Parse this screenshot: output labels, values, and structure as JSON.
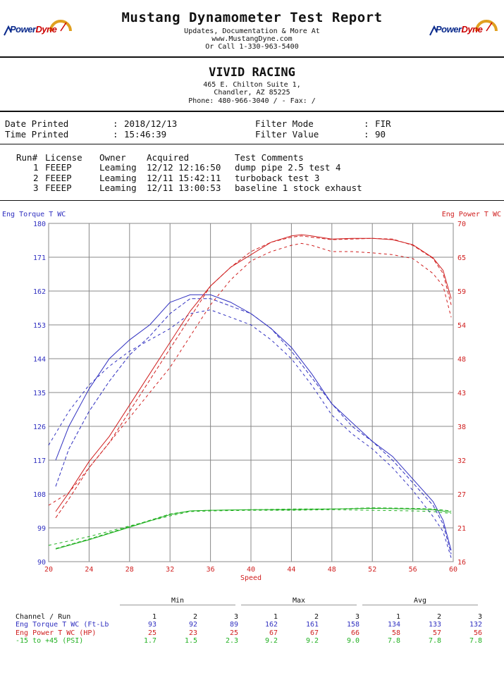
{
  "header": {
    "title": "Mustang Dynamometer Test Report",
    "line1": "Updates, Documentation & More At",
    "line2": "www.MustangDyne.com",
    "line3": "Or Call 1-330-963-5400",
    "logo_text_1": "Power",
    "logo_text_2": "Dyne"
  },
  "company": {
    "name": "VIVID RACING",
    "address1": "465 E. Chilton Suite 1,",
    "address2": "Chandler, AZ  85225",
    "phone": "Phone: 480-966-3040 /  - Fax:  /"
  },
  "meta": {
    "date_label": "Date Printed",
    "date_value": "2018/12/13",
    "time_label": "Time Printed",
    "time_value": "15:46:39",
    "filter_mode_label": "Filter Mode",
    "filter_mode_value": "FIR",
    "filter_value_label": "Filter Value",
    "filter_value_value": "90"
  },
  "runs": {
    "headers": [
      "Run#",
      "License",
      "Owner",
      "Acquired",
      "Test Comments"
    ],
    "rows": [
      {
        "run": "1",
        "license": "FEEEP",
        "owner": "Leaming",
        "acquired": "12/12 12:16:50",
        "comment": "dump pipe 2.5 test 4"
      },
      {
        "run": "2",
        "license": "FEEEP",
        "owner": "Leaming",
        "acquired": "12/11 15:42:11",
        "comment": "turboback test 3"
      },
      {
        "run": "3",
        "license": "FEEEP",
        "owner": "Leaming",
        "acquired": "12/11 13:00:53",
        "comment": "baseline 1 stock exhaust"
      }
    ]
  },
  "chart_data": {
    "type": "line",
    "left_axis_label": "Eng Torque T WC",
    "right_axis_label": "Eng Power T WC",
    "xlabel": "Speed",
    "xlim": [
      20,
      60
    ],
    "x_ticks": [
      "20",
      "24",
      "28",
      "32",
      "36",
      "40",
      "44",
      "48",
      "52",
      "56",
      "60"
    ],
    "left_ylim": [
      90,
      180
    ],
    "left_ticks": [
      "90",
      "99",
      "108",
      "117",
      "126",
      "135",
      "144",
      "153",
      "162",
      "171",
      "180"
    ],
    "right_ylim": [
      16,
      70
    ],
    "right_ticks": [
      "16",
      "21",
      "27",
      "32",
      "38",
      "43",
      "48",
      "54",
      "59",
      "65",
      "70"
    ],
    "grid": true,
    "colors": {
      "torque": "#3030c0",
      "power": "#d02020",
      "boost": "#20b020"
    },
    "series": [
      {
        "channel": "torque",
        "run": "1",
        "style": "solid",
        "axis": "left",
        "x": [
          20.7,
          22,
          24,
          26,
          28,
          30,
          32,
          34,
          36,
          38,
          40,
          42,
          44,
          46,
          48,
          50,
          52,
          54,
          56,
          58,
          59,
          59.8
        ],
        "y": [
          117,
          126,
          136,
          144,
          149,
          153,
          159,
          161,
          161,
          159,
          156,
          152,
          147,
          140,
          132,
          127,
          122,
          118,
          112,
          106,
          101,
          93
        ]
      },
      {
        "channel": "torque",
        "run": "2",
        "style": "dashed",
        "axis": "left",
        "x": [
          20.7,
          22,
          24,
          26,
          28,
          30,
          32,
          34,
          36,
          38,
          40,
          42,
          44,
          46,
          48,
          50,
          52,
          54,
          56,
          58,
          59,
          59.8
        ],
        "y": [
          110,
          120,
          130,
          138,
          145,
          150,
          156,
          160,
          160,
          158,
          156,
          152,
          146,
          139,
          132,
          126,
          122,
          117,
          111,
          105,
          100,
          92
        ]
      },
      {
        "channel": "torque",
        "run": "3",
        "style": "dashed",
        "axis": "left",
        "x": [
          20,
          22,
          24,
          26,
          28,
          30,
          32,
          34,
          36,
          38,
          40,
          42,
          44,
          46,
          48,
          50,
          52,
          54,
          56,
          58,
          59,
          59.8
        ],
        "y": [
          121,
          130,
          137,
          142,
          146,
          149,
          152,
          156,
          157,
          155,
          153,
          149,
          144,
          137,
          129,
          124,
          120,
          115,
          109,
          102,
          98,
          91
        ]
      },
      {
        "channel": "power",
        "run": "1",
        "style": "solid",
        "axis": "right",
        "x": [
          20.7,
          22,
          24,
          26,
          28,
          30,
          32,
          34,
          36,
          38,
          40,
          42,
          44,
          45,
          46,
          48,
          50,
          52,
          54,
          56,
          58,
          59,
          59.8
        ],
        "y": [
          24,
          27,
          32,
          36,
          41,
          46,
          51,
          56,
          60,
          63,
          65,
          67,
          68,
          68.2,
          68,
          67.5,
          67.6,
          67.6,
          67.4,
          66.6,
          64.5,
          62.5,
          58
        ]
      },
      {
        "channel": "power",
        "run": "2",
        "style": "dashed",
        "axis": "right",
        "x": [
          20.7,
          22,
          24,
          26,
          28,
          30,
          32,
          34,
          36,
          38,
          40,
          42,
          44,
          45,
          46,
          48,
          50,
          52,
          54,
          56,
          58,
          59,
          59.8
        ],
        "y": [
          23,
          26,
          31,
          35,
          40,
          45,
          50,
          55,
          60,
          63,
          65.5,
          67,
          67.8,
          68,
          67.8,
          67.4,
          67.5,
          67.6,
          67.5,
          66.5,
          64.4,
          62,
          57
        ]
      },
      {
        "channel": "power",
        "run": "3",
        "style": "dashed",
        "axis": "right",
        "x": [
          20,
          22,
          24,
          26,
          28,
          30,
          32,
          34,
          36,
          38,
          40,
          42,
          44,
          45,
          46,
          48,
          50,
          52,
          54,
          56,
          58,
          59,
          59.8
        ],
        "y": [
          25,
          27,
          31,
          35,
          39,
          43,
          47,
          52,
          57,
          61,
          64,
          65.5,
          66.5,
          66.8,
          66.5,
          65.5,
          65.5,
          65.3,
          65,
          64.4,
          62,
          60,
          55
        ]
      },
      {
        "channel": "boost",
        "run": "1",
        "style": "solid",
        "axis": "right",
        "x": [
          20.7,
          24,
          28,
          32,
          34,
          36,
          40,
          44,
          48,
          52,
          56,
          58,
          59.8
        ],
        "y": [
          18,
          19.5,
          21.5,
          23.5,
          24.1,
          24.2,
          24.3,
          24.3,
          24.4,
          24.5,
          24.4,
          24.3,
          23.9
        ]
      },
      {
        "channel": "boost",
        "run": "2",
        "style": "dashed",
        "axis": "right",
        "x": [
          20.7,
          24,
          28,
          32,
          34,
          36,
          40,
          44,
          48,
          52,
          56,
          58,
          59.8
        ],
        "y": [
          18.1,
          19.6,
          21.6,
          23.6,
          24.1,
          24.2,
          24.3,
          24.4,
          24.4,
          24.6,
          24.5,
          24.4,
          24.1
        ]
      },
      {
        "channel": "boost",
        "run": "3",
        "style": "dashed",
        "axis": "right",
        "x": [
          20,
          24,
          28,
          32,
          34,
          36,
          40,
          44,
          48,
          52,
          56,
          58,
          59.8
        ],
        "y": [
          18.6,
          20,
          21.7,
          23.3,
          24,
          24.1,
          24.2,
          24.2,
          24.3,
          24.2,
          24.1,
          24,
          23.7
        ]
      }
    ]
  },
  "summary": {
    "group_min": "Min",
    "group_max": "Max",
    "group_avg": "Avg",
    "channel_header": "Channel / Run",
    "run_numbers": [
      "1",
      "2",
      "3",
      "1",
      "2",
      "3",
      "1",
      "2",
      "3"
    ],
    "rows": [
      {
        "label": "Eng Torque T WC (Ft-Lb",
        "color": "#3030c0",
        "values": [
          "93",
          "92",
          "89",
          "162",
          "161",
          "158",
          "134",
          "133",
          "132"
        ]
      },
      {
        "label": "Eng Power T WC (HP)",
        "color": "#d02020",
        "values": [
          "25",
          "23",
          "25",
          "67",
          "67",
          "66",
          "58",
          "57",
          "56"
        ]
      },
      {
        "label": "-15 to +45 (PSI)",
        "color": "#20b020",
        "values": [
          "1.7",
          "1.5",
          "2.3",
          "9.2",
          "9.2",
          "9.0",
          "7.8",
          "7.8",
          "7.8"
        ]
      }
    ]
  }
}
